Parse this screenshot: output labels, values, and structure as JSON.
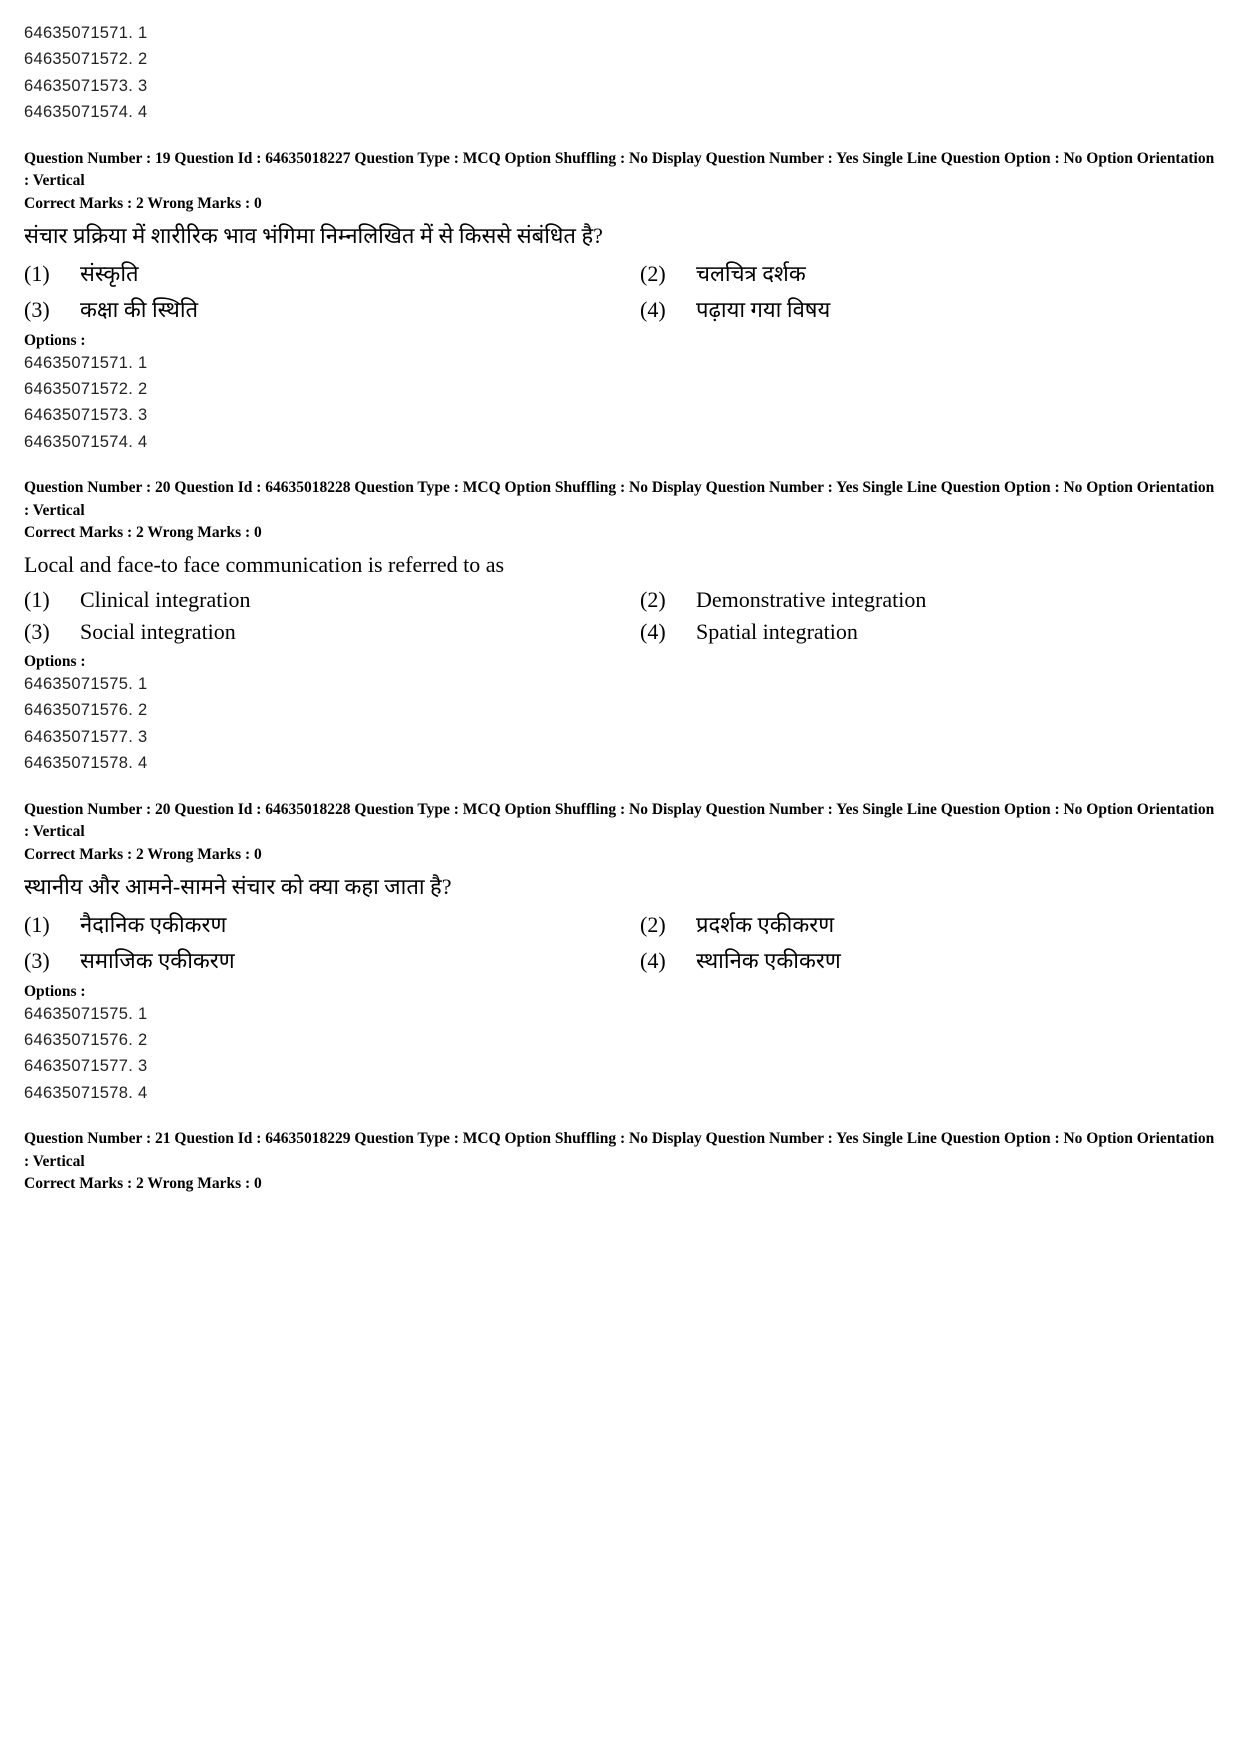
{
  "blocks": [
    {
      "type": "options_list",
      "items": [
        "64635071571. 1",
        "64635071572. 2",
        "64635071573. 3",
        "64635071574. 4"
      ]
    },
    {
      "type": "question",
      "meta_line": "Question Number : 19  Question Id : 64635018227  Question Type : MCQ  Option Shuffling : No  Display Question Number : Yes  Single Line Question Option : No  Option Orientation : Vertical",
      "marks_line": "Correct Marks : 2  Wrong Marks : 0",
      "qtext": "संचार प्रक्रिया में शारीरिक भाव भंगिमा निम्नलिखित में से किससे संबंधित है?",
      "choices": [
        {
          "num": "(1)",
          "text": "संस्कृति"
        },
        {
          "num": "(2)",
          "text": "चलचित्र दर्शक"
        },
        {
          "num": "(3)",
          "text": "कक्षा की स्थिति"
        },
        {
          "num": "(4)",
          "text": "पढ़ाया गया विषय"
        }
      ],
      "options_label": "Options :",
      "options": [
        "64635071571. 1",
        "64635071572. 2",
        "64635071573. 3",
        "64635071574. 4"
      ]
    },
    {
      "type": "question",
      "meta_line": "Question Number : 20  Question Id : 64635018228  Question Type : MCQ  Option Shuffling : No  Display Question Number : Yes  Single Line Question Option : No  Option Orientation : Vertical",
      "marks_line": "Correct Marks : 2  Wrong Marks : 0",
      "qtext": "Local and face-to face communication is referred to as",
      "choices": [
        {
          "num": "(1)",
          "text": "Clinical integration"
        },
        {
          "num": "(2)",
          "text": "Demonstrative integration"
        },
        {
          "num": "(3)",
          "text": "Social integration"
        },
        {
          "num": "(4)",
          "text": "Spatial integration"
        }
      ],
      "options_label": "Options :",
      "options": [
        "64635071575. 1",
        "64635071576. 2",
        "64635071577. 3",
        "64635071578. 4"
      ]
    },
    {
      "type": "question",
      "meta_line": "Question Number : 20  Question Id : 64635018228  Question Type : MCQ  Option Shuffling : No  Display Question Number : Yes  Single Line Question Option : No  Option Orientation : Vertical",
      "marks_line": "Correct Marks : 2  Wrong Marks : 0",
      "qtext": "स्थानीय और आमने-सामने संचार को क्या कहा जाता है?",
      "choices": [
        {
          "num": "(1)",
          "text": "नैदानिक एकीकरण"
        },
        {
          "num": "(2)",
          "text": "प्रदर्शक एकीकरण"
        },
        {
          "num": "(3)",
          "text": "समाजिक एकीकरण"
        },
        {
          "num": "(4)",
          "text": "स्थानिक एकीकरण"
        }
      ],
      "options_label": "Options :",
      "options": [
        "64635071575. 1",
        "64635071576. 2",
        "64635071577. 3",
        "64635071578. 4"
      ]
    },
    {
      "type": "question_header_only",
      "meta_line": "Question Number : 21  Question Id : 64635018229  Question Type : MCQ  Option Shuffling : No  Display Question Number : Yes  Single Line Question Option : No  Option Orientation : Vertical",
      "marks_line": "Correct Marks : 2  Wrong Marks : 0"
    }
  ]
}
